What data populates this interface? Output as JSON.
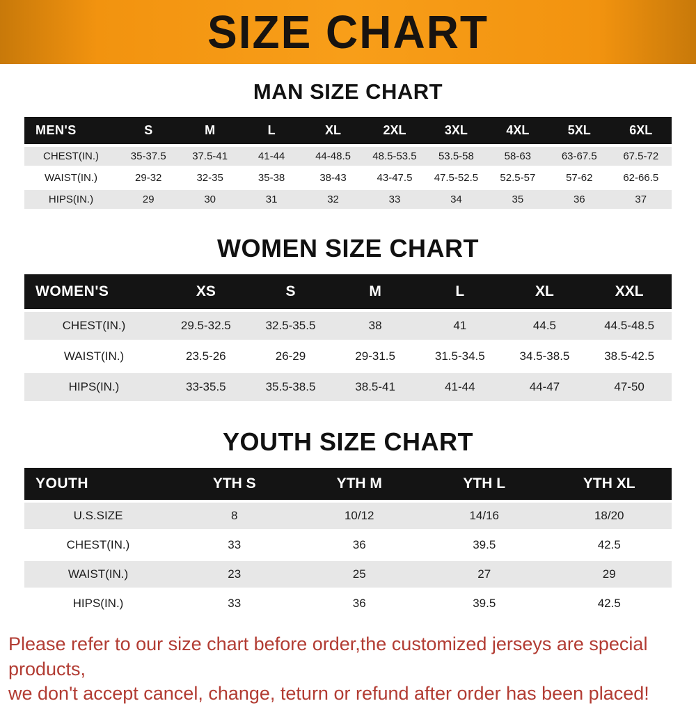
{
  "banner": {
    "title": "SIZE CHART"
  },
  "sections": [
    {
      "heading": "MAN SIZE CHART",
      "table": {
        "header": [
          "MEN'S",
          "S",
          "M",
          "L",
          "XL",
          "2XL",
          "3XL",
          "4XL",
          "5XL",
          "6XL"
        ],
        "rows": [
          [
            "CHEST(IN.)",
            "35-37.5",
            "37.5-41",
            "41-44",
            "44-48.5",
            "48.5-53.5",
            "53.5-58",
            "58-63",
            "63-67.5",
            "67.5-72"
          ],
          [
            "WAIST(IN.)",
            "29-32",
            "32-35",
            "35-38",
            "38-43",
            "43-47.5",
            "47.5-52.5",
            "52.5-57",
            "57-62",
            "62-66.5"
          ],
          [
            "HIPS(IN.)",
            "29",
            "30",
            "31",
            "32",
            "33",
            "34",
            "35",
            "36",
            "37"
          ]
        ]
      }
    },
    {
      "heading": "WOMEN SIZE CHART",
      "table": {
        "header": [
          "WOMEN'S",
          "XS",
          "S",
          "M",
          "L",
          "XL",
          "XXL"
        ],
        "rows": [
          [
            "CHEST(IN.)",
            "29.5-32.5",
            "32.5-35.5",
            "38",
            "41",
            "44.5",
            "44.5-48.5"
          ],
          [
            "WAIST(IN.)",
            "23.5-26",
            "26-29",
            "29-31.5",
            "31.5-34.5",
            "34.5-38.5",
            "38.5-42.5"
          ],
          [
            "HIPS(IN.)",
            "33-35.5",
            "35.5-38.5",
            "38.5-41",
            "41-44",
            "44-47",
            "47-50"
          ]
        ]
      }
    },
    {
      "heading": "YOUTH SIZE CHART",
      "table": {
        "header": [
          "YOUTH",
          "YTH S",
          "YTH M",
          "YTH L",
          "YTH XL"
        ],
        "rows": [
          [
            "U.S.SIZE",
            "8",
            "10/12",
            "14/16",
            "18/20"
          ],
          [
            "CHEST(IN.)",
            "33",
            "36",
            "39.5",
            "42.5"
          ],
          [
            "WAIST(IN.)",
            "23",
            "25",
            "27",
            "29"
          ],
          [
            "HIPS(IN.)",
            "33",
            "36",
            "39.5",
            "42.5"
          ]
        ]
      }
    }
  ],
  "footer": {
    "line1": "Please refer to our size chart before order,the customized jerseys are special products,",
    "line2": "we don't accept cancel, change, teturn or refund after order has been placed!"
  },
  "colors": {
    "banner_orange": "#f2930f",
    "banner_edge": "#c8790a",
    "header_black": "#141414",
    "stripe_gray": "#e7e7e7",
    "footer_red": "#b23c33"
  }
}
